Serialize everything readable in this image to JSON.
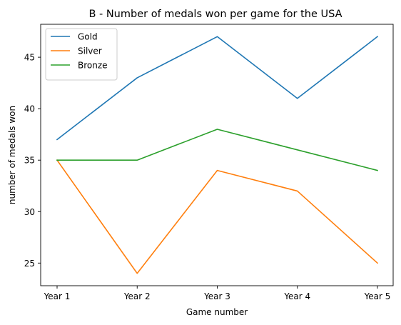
{
  "chart_data": {
    "type": "line",
    "title": "B - Number of medals won per game for the USA",
    "xlabel": "Game number",
    "ylabel": "number of medals won",
    "categories": [
      "Year 1",
      "Year 2",
      "Year 3",
      "Year 4",
      "Year 5"
    ],
    "ylim": [
      22.8,
      48.2
    ],
    "yticks": [
      25,
      30,
      35,
      40,
      45
    ],
    "grid": false,
    "legend_position": "upper-left",
    "series": [
      {
        "name": "Gold",
        "color": "#1f77b4",
        "values": [
          37,
          43,
          47,
          41,
          47
        ]
      },
      {
        "name": "Silver",
        "color": "#ff7f0e",
        "values": [
          35,
          24,
          34,
          32,
          25
        ]
      },
      {
        "name": "Bronze",
        "color": "#2ca02c",
        "values": [
          35,
          35,
          38,
          36,
          34
        ]
      }
    ]
  }
}
